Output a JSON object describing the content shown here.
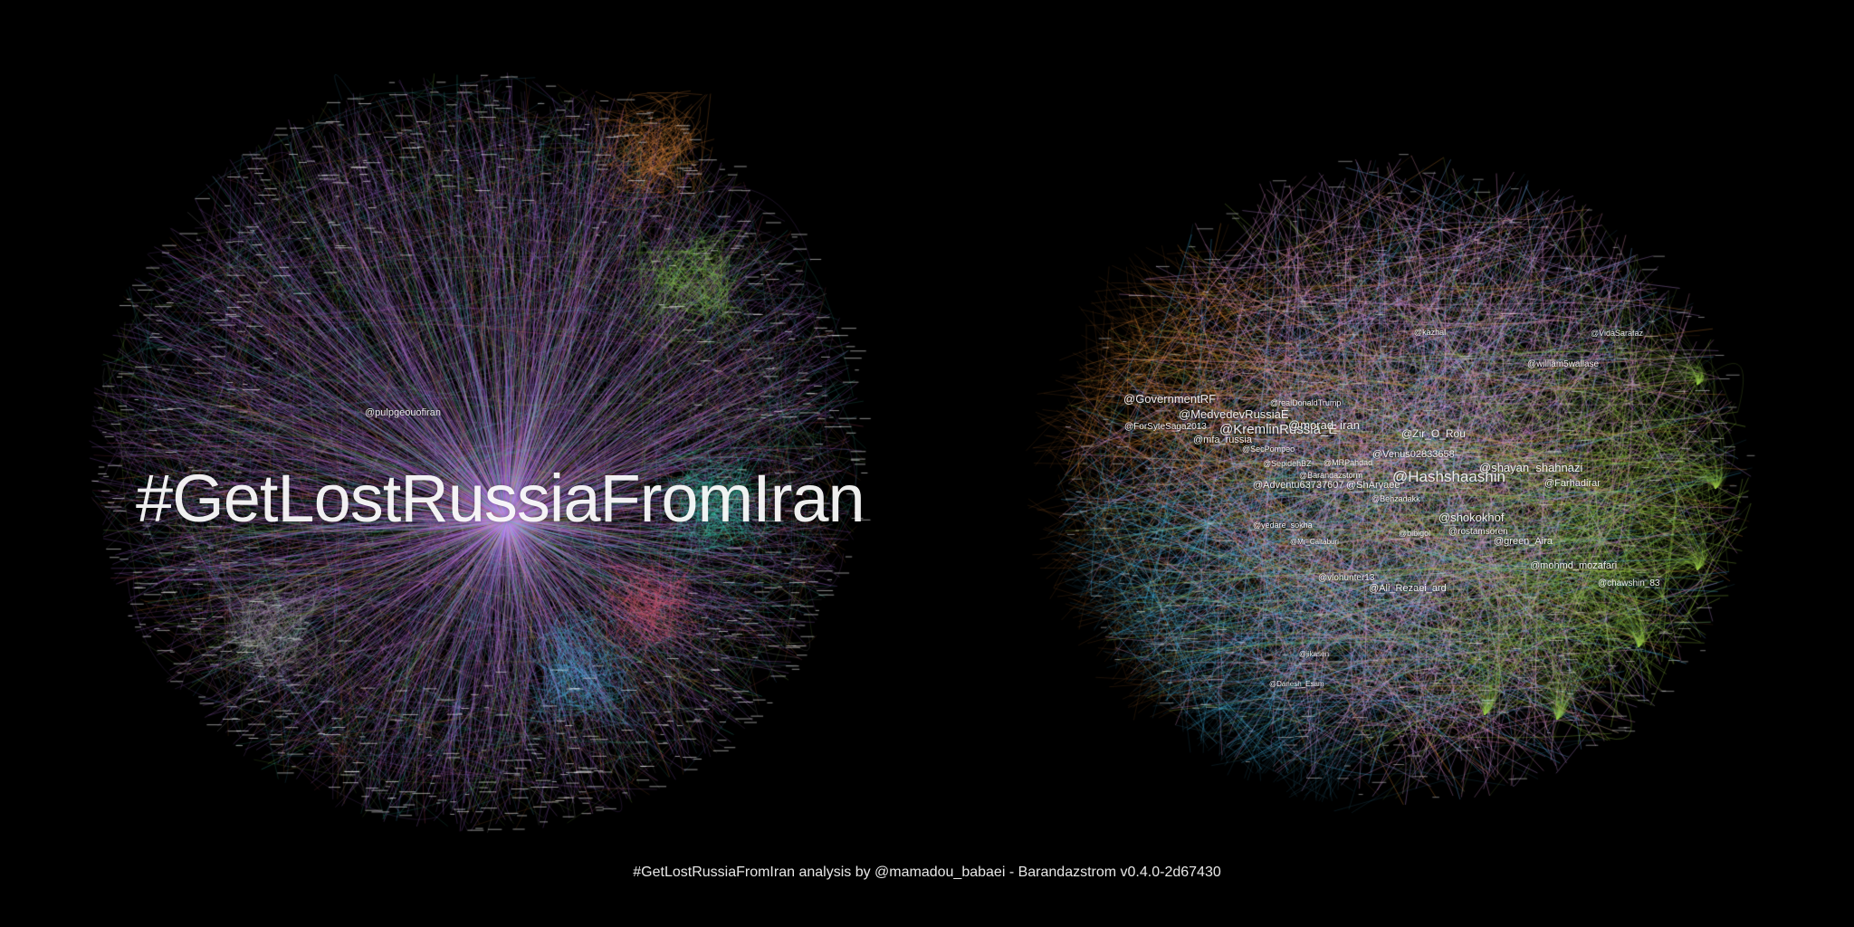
{
  "left_graph": {
    "hashtag": "#GetLostRussiaFromIran",
    "labels": [
      "@pulpgeouofiran"
    ],
    "colors": [
      "#c77dff",
      "#d58cff",
      "#b070ee",
      "#e68a3c",
      "#8fd14f",
      "#4fb7e8",
      "#aaaaaa",
      "#e45a7a",
      "#3fe0c0"
    ]
  },
  "right_graph": {
    "labels": [
      {
        "text": "@GovernmentRF",
        "size": 13
      },
      {
        "text": "@MedvedevRussiaE",
        "size": 13
      },
      {
        "text": "@ForSyteSaga2013",
        "size": 10
      },
      {
        "text": "@KremlinRussia_E",
        "size": 15
      },
      {
        "text": "@morad_iran",
        "size": 13
      },
      {
        "text": "@mfa_russia",
        "size": 11
      },
      {
        "text": "@Zir_O_Rou",
        "size": 12
      },
      {
        "text": "@Venus02833658",
        "size": 11
      },
      {
        "text": "@Hashshaashin",
        "size": 17
      },
      {
        "text": "@shayan_shahnazi",
        "size": 13
      },
      {
        "text": "@Farhadirar",
        "size": 11
      },
      {
        "text": "@Adventu63737607",
        "size": 11
      },
      {
        "text": "@ShAryaee",
        "size": 11
      },
      {
        "text": "@shokokhof",
        "size": 13
      },
      {
        "text": "@rostamsoren",
        "size": 10
      },
      {
        "text": "@green_Aira",
        "size": 11
      },
      {
        "text": "@mohmd_mozafari",
        "size": 11
      },
      {
        "text": "@vlohunter13",
        "size": 10
      },
      {
        "text": "@Ali_Rezaei_ard",
        "size": 11
      },
      {
        "text": "@chawshin_83",
        "size": 10
      },
      {
        "text": "@william5wallase",
        "size": 10
      },
      {
        "text": "@realDonaldTrump",
        "size": 9
      },
      {
        "text": "@SecPompeo",
        "size": 9
      },
      {
        "text": "@Behzadakk",
        "size": 9
      },
      {
        "text": "@yedare_sokha",
        "size": 9
      },
      {
        "text": "@Mr_Caltaburi",
        "size": 8
      },
      {
        "text": "@bibigol",
        "size": 9
      },
      {
        "text": "@Barandazstorm",
        "size": 9
      },
      {
        "text": "@MRPahdad",
        "size": 9
      },
      {
        "text": "@SepidehBZ",
        "size": 9
      },
      {
        "text": "@VidaSarafaz",
        "size": 9
      },
      {
        "text": "@kazhal",
        "size": 9
      },
      {
        "text": "@Danesh_Esam",
        "size": 8
      },
      {
        "text": "@jikasen",
        "size": 8
      }
    ],
    "colors": [
      "#e8a0e0",
      "#d79be8",
      "#e48a3a",
      "#4fc3ef",
      "#9ad14a",
      "#f0a0c0",
      "#7fb8ff",
      "#c9a0ff"
    ]
  },
  "footer": {
    "text": "#GetLostRussiaFromIran analysis by @mamadou_babaei - Barandazstrom v0.4.0-2d67430"
  }
}
